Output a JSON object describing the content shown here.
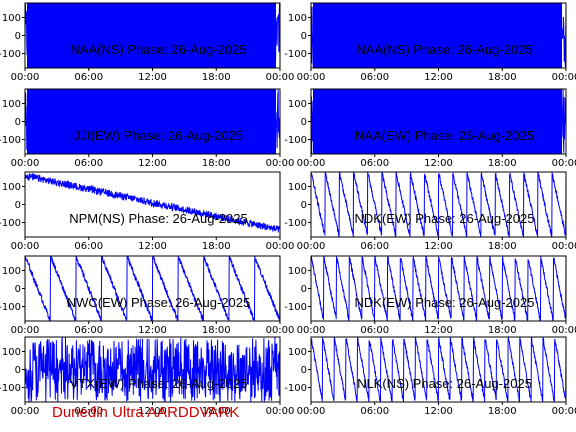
{
  "footer": "Dunedin Ultra AARDDVARK",
  "colors": {
    "trace": "#0000ff",
    "axis": "#000000",
    "footer": "#cc0000"
  },
  "chart_data": [
    {
      "type": "line",
      "title": "NAA(NS) Phase: 26-Aug-2025",
      "mode": "noise",
      "fill": 0.97,
      "x_ticks": [
        "00:00",
        "06:00",
        "12:00",
        "18:00",
        "00:00"
      ],
      "y_ticks": [
        "100",
        "0",
        "-100"
      ],
      "xlim": [
        0,
        24
      ],
      "ylim": [
        -180,
        180
      ]
    },
    {
      "type": "line",
      "title": "NAA(NS) Phase: 26-Aug-2025",
      "mode": "noise",
      "fill": 0.96,
      "x_ticks": [
        "00:00",
        "06:00",
        "12:00",
        "18:00",
        "00:00"
      ],
      "y_ticks": [
        "100",
        "0",
        "-100"
      ],
      "xlim": [
        0,
        24
      ],
      "ylim": [
        -180,
        180
      ]
    },
    {
      "type": "line",
      "title": "JJI(EW) Phase: 26-Aug-2025",
      "mode": "noise",
      "fill": 0.97,
      "x_ticks": [
        "00:00",
        "06:00",
        "12:00",
        "18:00",
        "00:00"
      ],
      "y_ticks": [
        "100",
        "0",
        "-100"
      ],
      "xlim": [
        0,
        24
      ],
      "ylim": [
        -180,
        180
      ]
    },
    {
      "type": "line",
      "title": "NAA(EW) Phase: 26-Aug-2025",
      "mode": "noise",
      "fill": 1.0,
      "x_ticks": [
        "00:00",
        "06:00",
        "12:00",
        "18:00",
        "00:00"
      ],
      "y_ticks": [
        "100",
        "0",
        "-100"
      ],
      "xlim": [
        0,
        24
      ],
      "ylim": [
        -180,
        180
      ]
    },
    {
      "type": "line",
      "title": "NPM(NS) Phase: 26-Aug-2025",
      "mode": "drift",
      "slopes": 1.5,
      "x_ticks": [
        "00:00",
        "06:00",
        "12:00",
        "18:00",
        "00:00"
      ],
      "y_ticks": [
        "100",
        "0",
        "-100"
      ],
      "xlim": [
        0,
        24
      ],
      "ylim": [
        -180,
        180
      ]
    },
    {
      "type": "line",
      "title": "NDK(EW) Phase: 26-Aug-2025",
      "mode": "saw",
      "slopes": 18,
      "x_ticks": [
        "00:00",
        "06:00",
        "12:00",
        "18:00",
        "00:00"
      ],
      "y_ticks": [
        "100",
        "0",
        "-100"
      ],
      "xlim": [
        0,
        24
      ],
      "ylim": [
        -180,
        180
      ]
    },
    {
      "type": "line",
      "title": "NWC(EW) Phase: 26-Aug-2025",
      "mode": "saw",
      "slopes": 10,
      "x_ticks": [
        "00:00",
        "06:00",
        "12:00",
        "18:00",
        "00:00"
      ],
      "y_ticks": [
        "100",
        "0",
        "-100"
      ],
      "xlim": [
        0,
        24
      ],
      "ylim": [
        -180,
        180
      ]
    },
    {
      "type": "line",
      "title": "NDK(EW) Phase: 26-Aug-2025",
      "mode": "saw",
      "slopes": 20,
      "x_ticks": [
        "00:00",
        "06:00",
        "12:00",
        "18:00",
        "00:00"
      ],
      "y_ticks": [
        "100",
        "0",
        "-100"
      ],
      "xlim": [
        0,
        24
      ],
      "ylim": [
        -180,
        180
      ]
    },
    {
      "type": "line",
      "title": "VTX(EW) Phase: 26-Aug-2025",
      "mode": "noise",
      "fill": 0.9,
      "x_ticks": [
        "00:00",
        "06:00",
        "12:00",
        "18:00",
        "00:00"
      ],
      "y_ticks": [
        "100",
        "0",
        "-100"
      ],
      "xlim": [
        0,
        24
      ],
      "ylim": [
        -180,
        180
      ]
    },
    {
      "type": "line",
      "title": "NLK(NS) Phase: 26-Aug-2025",
      "mode": "saw",
      "slopes": 22,
      "x_ticks": [
        "00:00",
        "06:00",
        "12:00",
        "18:00",
        "00:00"
      ],
      "y_ticks": [
        "100",
        "0",
        "-100"
      ],
      "xlim": [
        0,
        24
      ],
      "ylim": [
        -180,
        180
      ]
    }
  ]
}
